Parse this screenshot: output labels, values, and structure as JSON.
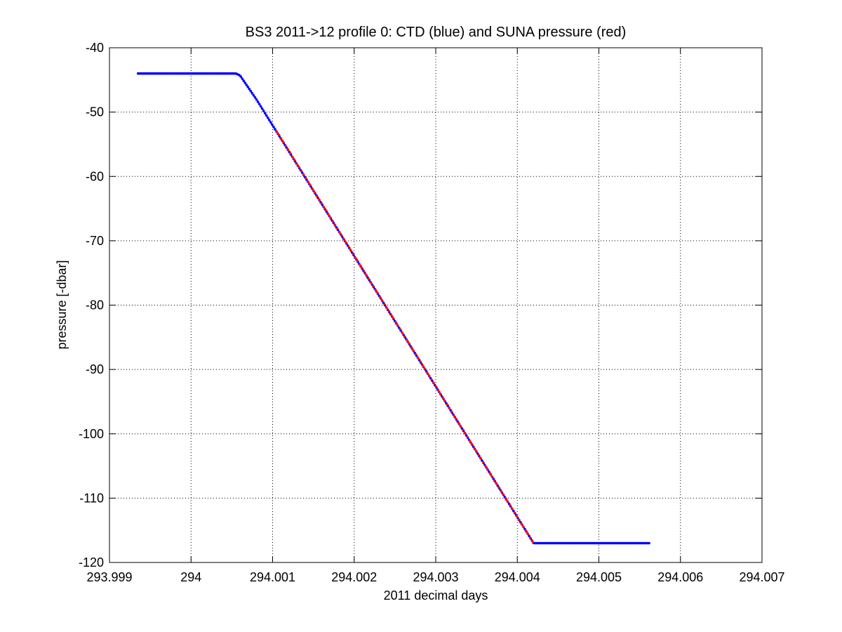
{
  "chart_data": {
    "type": "line",
    "title": "BS3 2011->12 profile 0: CTD (blue) and SUNA pressure (red)",
    "xlabel": "2011 decimal days",
    "ylabel": "pressure [-dbar]",
    "xlim": [
      293.999,
      294.007
    ],
    "ylim": [
      -120,
      -40
    ],
    "xticks": [
      293.999,
      294,
      294.001,
      294.002,
      294.003,
      294.004,
      294.005,
      294.006,
      294.007
    ],
    "xtick_labels": [
      "293.999",
      "294",
      "294.001",
      "294.002",
      "294.003",
      "294.004",
      "294.005",
      "294.006",
      "294.007"
    ],
    "yticks": [
      -120,
      -110,
      -100,
      -90,
      -80,
      -70,
      -60,
      -50,
      -40
    ],
    "ytick_labels": [
      "-120",
      "-110",
      "-100",
      "-90",
      "-80",
      "-70",
      "-60",
      "-50",
      "-40"
    ],
    "grid": true,
    "series": [
      {
        "color": "#0000ff",
        "marker": "dot",
        "points": [
          [
            293.99935,
            -44
          ],
          [
            294.00055,
            -44
          ],
          [
            294.0006,
            -44.3
          ],
          [
            294.0008,
            -48
          ],
          [
            294.0042,
            -117
          ],
          [
            294.00563,
            -117
          ]
        ]
      },
      {
        "color": "#ff0000",
        "marker": "dot",
        "points": [
          [
            294.00105,
            -53
          ],
          [
            294.0042,
            -117
          ]
        ]
      }
    ]
  }
}
